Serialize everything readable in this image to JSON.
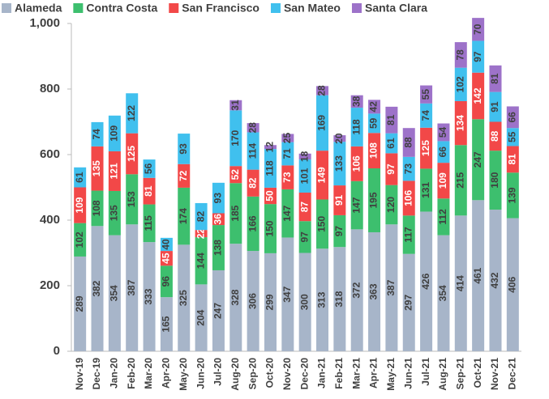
{
  "chart_data": {
    "type": "stacked_bar",
    "categories": [
      "Nov-19",
      "Dec-19",
      "Jan-20",
      "Feb-20",
      "Mar-20",
      "Apr-20",
      "May-20",
      "Jun-20",
      "Jul-20",
      "Aug-20",
      "Sep-20",
      "Oct-20",
      "Nov-20",
      "Dec-20",
      "Jan-21",
      "Feb-21",
      "Mar-21",
      "Apr-21",
      "May-21",
      "Jun-21",
      "Jul-21",
      "Aug-21",
      "Sep-21",
      "Oct-21",
      "Nov-21",
      "Dec-21"
    ],
    "series": [
      {
        "name": "Alameda",
        "color": "#a7b5c9",
        "values": [
          289,
          382,
          354,
          387,
          333,
          165,
          325,
          204,
          247,
          328,
          306,
          299,
          347,
          300,
          313,
          318,
          372,
          363,
          387,
          297,
          426,
          354,
          414,
          461,
          432,
          406
        ]
      },
      {
        "name": "Contra Costa",
        "color": "#3dbf6e",
        "values": [
          102,
          108,
          135,
          153,
          115,
          96,
          174,
          144,
          138,
          185,
          166,
          150,
          147,
          97,
          150,
          97,
          147,
          195,
          120,
          117,
          131,
          112,
          215,
          247,
          180,
          139
        ]
      },
      {
        "name": "San Francisco",
        "color": "#f24848",
        "values": [
          109,
          135,
          121,
          125,
          81,
          45,
          72,
          22,
          36,
          52,
          82,
          50,
          73,
          87,
          149,
          91,
          106,
          108,
          97,
          106,
          125,
          109,
          134,
          142,
          88,
          81
        ]
      },
      {
        "name": "San Mateo",
        "color": "#40c0ee",
        "values": [
          61,
          74,
          109,
          122,
          56,
          40,
          93,
          82,
          93,
          170,
          114,
          118,
          71,
          101,
          169,
          133,
          118,
          59,
          61,
          73,
          74,
          66,
          102,
          97,
          91,
          55
        ]
      },
      {
        "name": "Santa Clara",
        "color": "#9d72c9",
        "values": [
          null,
          null,
          null,
          null,
          null,
          null,
          null,
          null,
          null,
          31,
          28,
          12,
          25,
          18,
          28,
          20,
          38,
          42,
          81,
          88,
          55,
          54,
          78,
          70,
          81,
          66
        ]
      }
    ],
    "ylim": [
      0,
      1000
    ],
    "yticks": [
      0,
      200,
      400,
      600,
      800,
      {
        "value": 1000,
        "label": "1,000"
      }
    ]
  }
}
